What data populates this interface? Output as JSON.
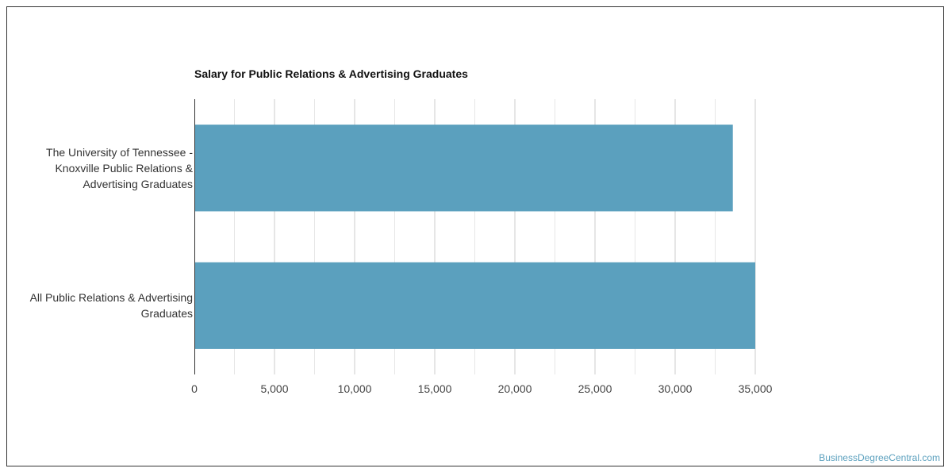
{
  "chart_data": {
    "type": "bar",
    "orientation": "horizontal",
    "title": "Salary for Public Relations & Advertising Graduates",
    "categories": [
      "The University of Tennessee - Knoxville Public Relations & Advertising Graduates",
      "All Public Relations & Advertising Graduates"
    ],
    "category_lines": [
      [
        "The University of Tennessee -",
        "Knoxville Public Relations &",
        "Advertising Graduates"
      ],
      [
        "All Public Relations & Advertising",
        "Graduates"
      ]
    ],
    "values": [
      33600,
      35000
    ],
    "xlim": [
      0,
      35000
    ],
    "xticks": [
      0,
      5000,
      10000,
      15000,
      20000,
      25000,
      30000,
      35000
    ],
    "xtick_labels": [
      "0",
      "5,000",
      "10,000",
      "15,000",
      "20,000",
      "25,000",
      "30,000",
      "35,000"
    ],
    "xlabel": "",
    "ylabel": "",
    "grid": true,
    "bar_color": "#5ba0be",
    "grid_color": "#dddddd",
    "axis_color": "#333333"
  },
  "watermark": "BusinessDegreeCentral.com"
}
